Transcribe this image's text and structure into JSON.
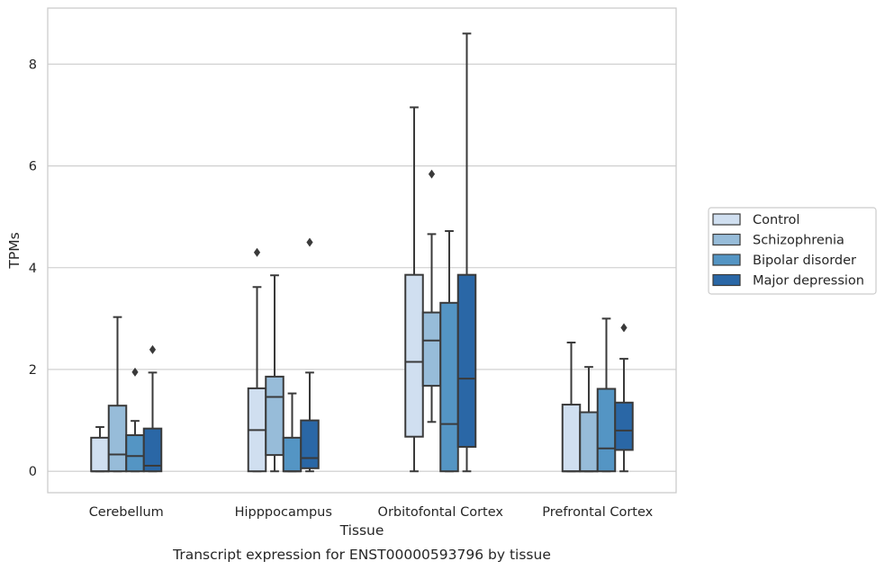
{
  "chart_data": {
    "type": "box",
    "title": "",
    "caption": "Transcript expression for ENST00000593796 by tissue",
    "xlabel": "Tissue",
    "ylabel": "TPMs",
    "ylim": [
      -0.42,
      9.1
    ],
    "yticks": [
      0,
      2,
      4,
      6,
      8
    ],
    "grid": "horizontal",
    "legend_position": "right",
    "categories": [
      "Cerebellum",
      "Hipppocampus",
      "Orbitofontal Cortex",
      "Prefrontal Cortex"
    ],
    "series": [
      {
        "name": "Control",
        "color": "#d0dff0",
        "boxes": [
          {
            "whislo": 0,
            "q1": 0,
            "med": 0,
            "q3": 0.66,
            "whishi": 0.87,
            "fliers": []
          },
          {
            "whislo": 0,
            "q1": 0,
            "med": 0.81,
            "q3": 1.63,
            "whishi": 3.62,
            "fliers": [
              4.3
            ]
          },
          {
            "whislo": 0,
            "q1": 0.68,
            "med": 2.15,
            "q3": 3.86,
            "whishi": 7.15,
            "fliers": []
          },
          {
            "whislo": 0,
            "q1": 0,
            "med": 0,
            "q3": 1.31,
            "whishi": 2.53,
            "fliers": []
          }
        ]
      },
      {
        "name": "Schizophrenia",
        "color": "#97bcd9",
        "boxes": [
          {
            "whislo": 0,
            "q1": 0,
            "med": 0.33,
            "q3": 1.29,
            "whishi": 3.03,
            "fliers": []
          },
          {
            "whislo": 0,
            "q1": 0.32,
            "med": 1.46,
            "q3": 1.86,
            "whishi": 3.85,
            "fliers": []
          },
          {
            "whislo": 0.97,
            "q1": 1.68,
            "med": 2.57,
            "q3": 3.12,
            "whishi": 4.66,
            "fliers": [
              5.84
            ]
          },
          {
            "whislo": 0,
            "q1": 0,
            "med": 0,
            "q3": 1.16,
            "whishi": 2.05,
            "fliers": []
          }
        ]
      },
      {
        "name": "Bipolar disorder",
        "color": "#5495c4",
        "boxes": [
          {
            "whislo": 0,
            "q1": 0,
            "med": 0.3,
            "q3": 0.71,
            "whishi": 0.99,
            "fliers": [
              1.95
            ]
          },
          {
            "whislo": 0,
            "q1": 0,
            "med": 0,
            "q3": 0.66,
            "whishi": 1.53,
            "fliers": []
          },
          {
            "whislo": 0,
            "q1": 0,
            "med": 0.93,
            "q3": 3.31,
            "whishi": 4.72,
            "fliers": []
          },
          {
            "whislo": 0,
            "q1": 0,
            "med": 0.45,
            "q3": 1.62,
            "whishi": 3.0,
            "fliers": []
          }
        ]
      },
      {
        "name": "Major depression",
        "color": "#2a67a6",
        "boxes": [
          {
            "whislo": 0,
            "q1": 0,
            "med": 0.11,
            "q3": 0.84,
            "whishi": 1.94,
            "fliers": [
              2.39
            ]
          },
          {
            "whislo": 0,
            "q1": 0.06,
            "med": 0.26,
            "q3": 1.0,
            "whishi": 1.94,
            "fliers": [
              4.5
            ]
          },
          {
            "whislo": 0,
            "q1": 0.48,
            "med": 1.82,
            "q3": 3.86,
            "whishi": 8.6,
            "fliers": []
          },
          {
            "whislo": 0,
            "q1": 0.42,
            "med": 0.8,
            "q3": 1.35,
            "whishi": 2.21,
            "fliers": [
              2.82
            ]
          }
        ]
      }
    ]
  },
  "style": {
    "line_color": "#3a3a3a",
    "grid_color": "#cccccc",
    "frame_color": "#cccccc",
    "legend_border": "#cccccc"
  }
}
